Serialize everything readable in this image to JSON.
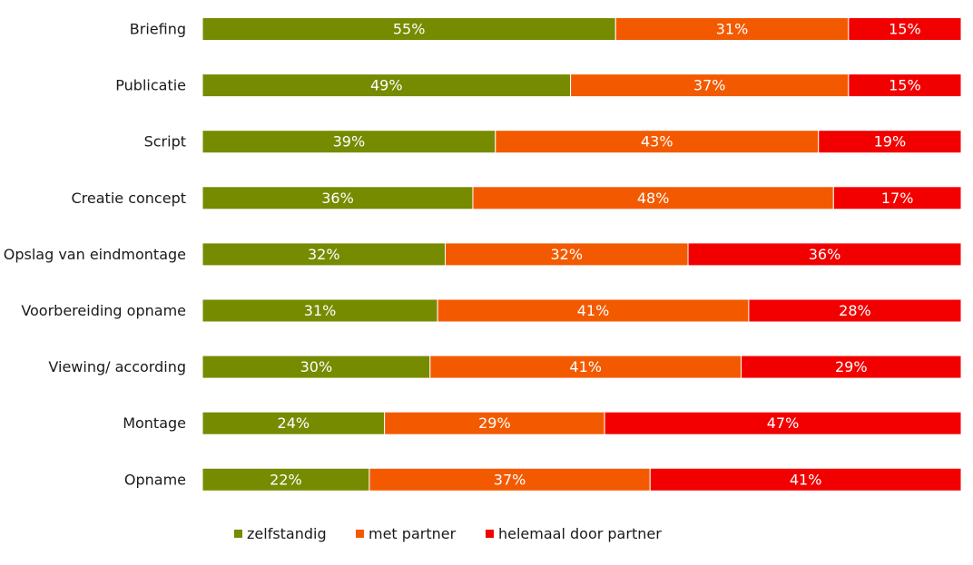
{
  "chart_data": {
    "type": "bar",
    "orientation": "horizontal",
    "stacked": true,
    "percent": true,
    "title": "",
    "xlabel": "",
    "ylabel": "",
    "xlim": [
      0,
      100
    ],
    "grid": false,
    "legend_position": "bottom",
    "categories": [
      "Briefing",
      "Publicatie",
      "Script",
      "Creatie concept",
      "Opslag van eindmontage",
      "Voorbereiding opname",
      "Viewing/ according",
      "Montage",
      "Opname"
    ],
    "series": [
      {
        "name": "zelfstandig",
        "color": "#768b00",
        "values": [
          55,
          49,
          39,
          36,
          32,
          31,
          30,
          24,
          22
        ]
      },
      {
        "name": "met partner",
        "color": "#f35a00",
        "values": [
          31,
          37,
          43,
          48,
          32,
          41,
          41,
          29,
          37
        ]
      },
      {
        "name": "helemaal door partner",
        "color": "#f20000",
        "values": [
          15,
          15,
          19,
          17,
          36,
          28,
          29,
          47,
          41
        ]
      }
    ],
    "value_suffix": "%"
  }
}
